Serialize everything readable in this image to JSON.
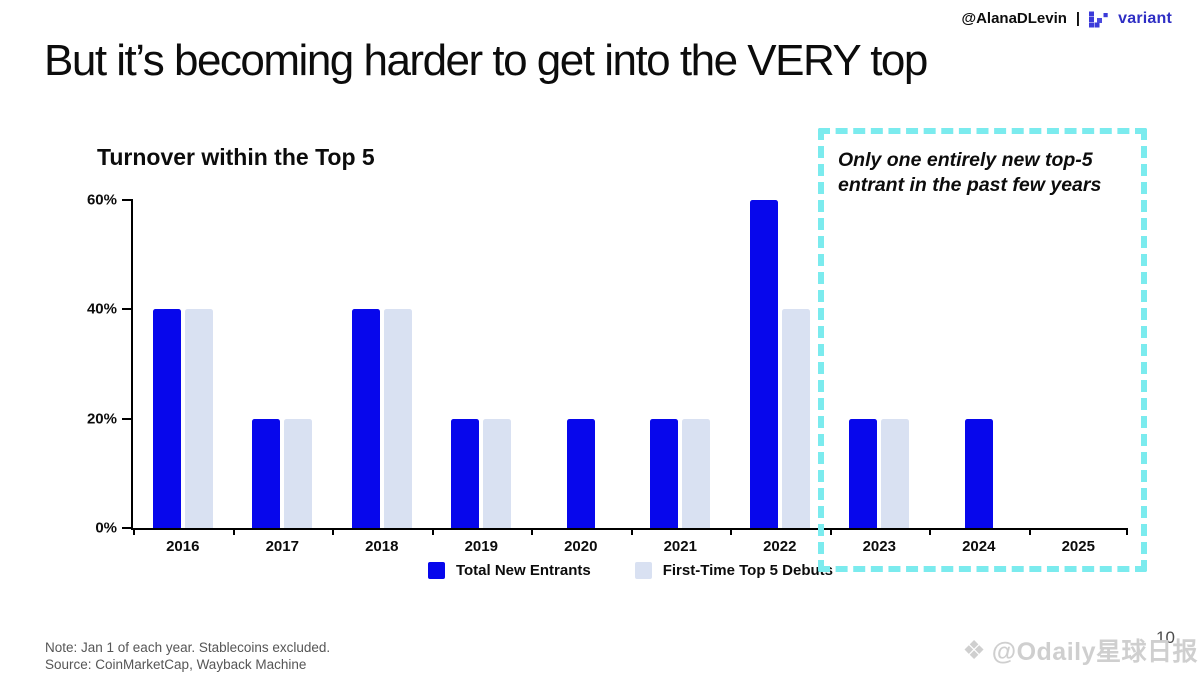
{
  "header": {
    "handle": "@AlanaDLevin",
    "separator": "|",
    "brand": "variant"
  },
  "title": "But it’s becoming harder to get into the VERY top",
  "chart_data": {
    "type": "bar",
    "title": "Turnover within the Top 5",
    "categories": [
      "2016",
      "2017",
      "2018",
      "2019",
      "2020",
      "2021",
      "2022",
      "2023",
      "2024",
      "2025"
    ],
    "series": [
      {
        "name": "Total New Entrants",
        "color": "#0707ec",
        "values": [
          40,
          20,
          40,
          20,
          20,
          20,
          60,
          20,
          20,
          0
        ]
      },
      {
        "name": "First-Time Top 5 Debuts",
        "color": "#d9e1f2",
        "values": [
          40,
          20,
          40,
          20,
          0,
          20,
          40,
          20,
          0,
          0
        ]
      }
    ],
    "xlabel": "",
    "ylabel": "",
    "ylim": [
      0,
      60
    ],
    "yticks": [
      "0%",
      "20%",
      "40%",
      "60%"
    ],
    "grid": false,
    "legend_position": "bottom"
  },
  "annotation": {
    "line1": "Only one entirely new top-5",
    "line2": "entrant in the past few years",
    "border_color": "#7bebee",
    "covers_categories": [
      "2023",
      "2024",
      "2025"
    ]
  },
  "footer": {
    "note": "Note: Jan 1 of each year. Stablecoins excluded.",
    "source": "Source: CoinMarketCap, Wayback Machine"
  },
  "page_number": "10",
  "watermark": {
    "text": "@Odaily星球日报"
  },
  "colors": {
    "bar_primary": "#0707ec",
    "bar_secondary": "#d9e1f2",
    "annotation_border": "#7bebee",
    "brand_blue": "#2e2ec4",
    "note_gray": "#565656"
  }
}
